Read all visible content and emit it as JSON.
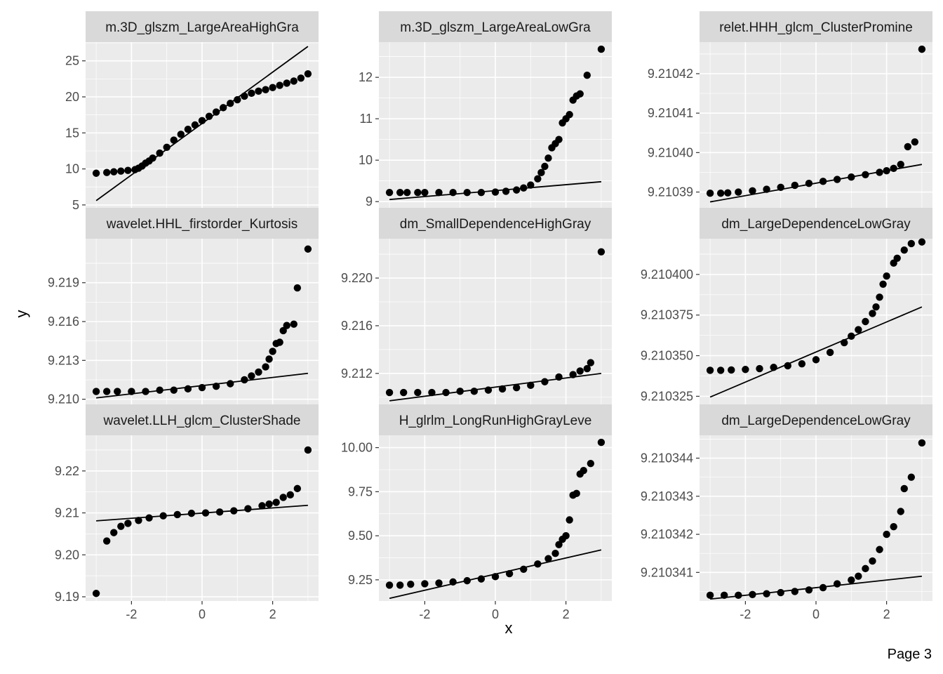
{
  "page_label": "Page 3",
  "colors": {
    "panel_bg": "#ebebeb",
    "grid_major": "#ffffff",
    "strip_bg": "#d9d9d9",
    "point": "#000000",
    "line": "#000000"
  },
  "chart_data": {
    "type": "scatter",
    "subtype": "qq-plot facets (3x3)",
    "xlabel": "x",
    "ylabel": "y",
    "grid": true,
    "legend": "none",
    "facets": [
      {
        "strip": "m.3D_glszm_LargeAreaHighGra",
        "yticks": [
          5,
          10,
          15,
          20,
          25
        ],
        "ylim": [
          4.6,
          27.6
        ],
        "ref_line": {
          "x0": -3,
          "y0": 5.6,
          "x1": 3,
          "y1": 27.0
        },
        "q": [
          [
            -3,
            9.4
          ],
          [
            -2.7,
            9.5
          ],
          [
            -2.5,
            9.6
          ],
          [
            -2.3,
            9.7
          ],
          [
            -2.1,
            9.8
          ],
          [
            -1.9,
            9.9
          ],
          [
            -1.8,
            10.1
          ],
          [
            -1.7,
            10.4
          ],
          [
            -1.6,
            10.8
          ],
          [
            -1.5,
            11.1
          ],
          [
            -1.4,
            11.5
          ],
          [
            -1.2,
            12.2
          ],
          [
            -1.0,
            13.0
          ],
          [
            -0.8,
            14.0
          ],
          [
            -0.6,
            14.8
          ],
          [
            -0.4,
            15.5
          ],
          [
            -0.2,
            16.1
          ],
          [
            0,
            16.7
          ],
          [
            0.2,
            17.3
          ],
          [
            0.4,
            17.9
          ],
          [
            0.6,
            18.5
          ],
          [
            0.8,
            19.1
          ],
          [
            1.0,
            19.6
          ],
          [
            1.2,
            20.1
          ],
          [
            1.4,
            20.5
          ],
          [
            1.6,
            20.8
          ],
          [
            1.8,
            21.0
          ],
          [
            2.0,
            21.3
          ],
          [
            2.2,
            21.6
          ],
          [
            2.4,
            21.9
          ],
          [
            2.6,
            22.2
          ],
          [
            2.8,
            22.6
          ],
          [
            3.0,
            23.2
          ]
        ]
      },
      {
        "strip": "m.3D_glszm_LargeAreaLowGra",
        "yticks": [
          9,
          10,
          11,
          12
        ],
        "ylim": [
          8.85,
          12.85
        ],
        "ref_line": {
          "x0": -3,
          "y0": 9.05,
          "x1": 3,
          "y1": 9.48
        },
        "q": [
          [
            -3,
            9.22
          ],
          [
            -2.7,
            9.22
          ],
          [
            -2.5,
            9.22
          ],
          [
            -2.2,
            9.22
          ],
          [
            -2,
            9.22
          ],
          [
            -1.6,
            9.22
          ],
          [
            -1.2,
            9.22
          ],
          [
            -0.8,
            9.22
          ],
          [
            -0.4,
            9.22
          ],
          [
            0,
            9.23
          ],
          [
            0.3,
            9.25
          ],
          [
            0.6,
            9.28
          ],
          [
            0.8,
            9.33
          ],
          [
            1.0,
            9.4
          ],
          [
            1.2,
            9.55
          ],
          [
            1.3,
            9.7
          ],
          [
            1.4,
            9.85
          ],
          [
            1.5,
            10.05
          ],
          [
            1.6,
            10.3
          ],
          [
            1.7,
            10.4
          ],
          [
            1.8,
            10.5
          ],
          [
            1.9,
            10.9
          ],
          [
            2.0,
            11.0
          ],
          [
            2.1,
            11.1
          ],
          [
            2.2,
            11.45
          ],
          [
            2.3,
            11.55
          ],
          [
            2.4,
            11.6
          ],
          [
            2.6,
            12.05
          ],
          [
            3.0,
            12.68
          ]
        ]
      },
      {
        "strip": "relet.HHH_glcm_ClusterPromine",
        "yticks": [
          9.21039,
          9.2104,
          9.21041,
          9.21042
        ],
        "ylim": [
          9.210386,
          9.210428
        ],
        "ref_line": {
          "x0": -3,
          "y0": 9.2103875,
          "x1": 3,
          "y1": 9.210397
        },
        "q": [
          [
            -3,
            9.2103897
          ],
          [
            -2.7,
            9.2103897
          ],
          [
            -2.5,
            9.2103898
          ],
          [
            -2.2,
            9.21039
          ],
          [
            -1.8,
            9.2103903
          ],
          [
            -1.4,
            9.2103907
          ],
          [
            -1.0,
            9.2103912
          ],
          [
            -0.6,
            9.2103917
          ],
          [
            -0.2,
            9.2103922
          ],
          [
            0.2,
            9.2103927
          ],
          [
            0.6,
            9.2103932
          ],
          [
            1.0,
            9.2103938
          ],
          [
            1.4,
            9.2103944
          ],
          [
            1.8,
            9.210395
          ],
          [
            2.0,
            9.2103954
          ],
          [
            2.2,
            9.210396
          ],
          [
            2.4,
            9.210397
          ],
          [
            2.6,
            9.2104015
          ],
          [
            2.8,
            9.2104027
          ],
          [
            3.0,
            9.2104262
          ]
        ]
      },
      {
        "strip": "wavelet.HHL_firstorder_Kurtosis",
        "yticks": [
          9.21,
          9.213,
          9.216,
          9.219
        ],
        "ylim": [
          9.2096,
          9.2224
        ],
        "ref_line": {
          "x0": -3,
          "y0": 9.2101,
          "x1": 3,
          "y1": 9.212
        },
        "q": [
          [
            -3,
            9.2106
          ],
          [
            -2.7,
            9.2106
          ],
          [
            -2.4,
            9.2106
          ],
          [
            -2.0,
            9.2106
          ],
          [
            -1.6,
            9.2106
          ],
          [
            -1.2,
            9.2107
          ],
          [
            -0.8,
            9.2107
          ],
          [
            -0.4,
            9.2108
          ],
          [
            0,
            9.2109
          ],
          [
            0.4,
            9.211
          ],
          [
            0.8,
            9.2112
          ],
          [
            1.2,
            9.2115
          ],
          [
            1.4,
            9.2118
          ],
          [
            1.6,
            9.2121
          ],
          [
            1.8,
            9.2125
          ],
          [
            1.9,
            9.2131
          ],
          [
            2.0,
            9.2137
          ],
          [
            2.1,
            9.2143
          ],
          [
            2.2,
            9.2144
          ],
          [
            2.3,
            9.2153
          ],
          [
            2.4,
            9.2157
          ],
          [
            2.6,
            9.2158
          ],
          [
            2.7,
            9.2186
          ],
          [
            3.0,
            9.2216
          ]
        ]
      },
      {
        "strip": "dm_SmallDependenceHighGray",
        "yticks": [
          9.212,
          9.216,
          9.22
        ],
        "ylim": [
          9.2094,
          9.2233
        ],
        "ref_line": {
          "x0": -3,
          "y0": 9.2097,
          "x1": 3,
          "y1": 9.212
        },
        "q": [
          [
            -3,
            9.2104
          ],
          [
            -2.6,
            9.2104
          ],
          [
            -2.2,
            9.2104
          ],
          [
            -1.8,
            9.2104
          ],
          [
            -1.4,
            9.2104
          ],
          [
            -1.0,
            9.2105
          ],
          [
            -0.6,
            9.2105
          ],
          [
            -0.2,
            9.2106
          ],
          [
            0.2,
            9.2107
          ],
          [
            0.6,
            9.2108
          ],
          [
            1.0,
            9.211
          ],
          [
            1.4,
            9.2113
          ],
          [
            1.8,
            9.2117
          ],
          [
            2.2,
            9.2119
          ],
          [
            2.4,
            9.2122
          ],
          [
            2.6,
            9.2124
          ],
          [
            2.7,
            9.2129
          ],
          [
            3.0,
            9.2222
          ]
        ]
      },
      {
        "strip": "dm_LargeDependenceLowGray",
        "yticks": [
          9.210325,
          9.21035,
          9.210375,
          9.2104
        ],
        "ylim": [
          9.21032,
          9.210422
        ],
        "ref_line": {
          "x0": -3,
          "y0": 9.2103245,
          "x1": 3,
          "y1": 9.21038
        },
        "q": [
          [
            -3,
            9.210341
          ],
          [
            -2.7,
            9.210341
          ],
          [
            -2.4,
            9.2103412
          ],
          [
            -2.0,
            9.2103415
          ],
          [
            -1.6,
            9.210342
          ],
          [
            -1.2,
            9.2103428
          ],
          [
            -0.8,
            9.2103438
          ],
          [
            -0.4,
            9.210345
          ],
          [
            0,
            9.2103475
          ],
          [
            0.4,
            9.210352
          ],
          [
            0.8,
            9.210358
          ],
          [
            1.0,
            9.210362
          ],
          [
            1.2,
            9.210366
          ],
          [
            1.4,
            9.210371
          ],
          [
            1.6,
            9.210376
          ],
          [
            1.7,
            9.21038
          ],
          [
            1.8,
            9.210386
          ],
          [
            1.9,
            9.210394
          ],
          [
            2.0,
            9.210399
          ],
          [
            2.2,
            9.210407
          ],
          [
            2.3,
            9.21041
          ],
          [
            2.5,
            9.210415
          ],
          [
            2.7,
            9.210419
          ],
          [
            3.0,
            9.21042
          ]
        ]
      },
      {
        "strip": "wavelet.LLH_glcm_ClusterShade",
        "yticks": [
          9.19,
          9.2,
          9.21,
          9.22
        ],
        "ylim": [
          9.189,
          9.2285
        ],
        "ref_line": {
          "x0": -3,
          "y0": 9.2081,
          "x1": 3,
          "y1": 9.2118
        },
        "q": [
          [
            -3,
            9.1908
          ],
          [
            -2.7,
            9.2033
          ],
          [
            -2.5,
            9.2053
          ],
          [
            -2.3,
            9.2068
          ],
          [
            -2.1,
            9.2075
          ],
          [
            -1.8,
            9.2082
          ],
          [
            -1.5,
            9.2088
          ],
          [
            -1.1,
            9.2093
          ],
          [
            -0.7,
            9.2096
          ],
          [
            -0.3,
            9.2099
          ],
          [
            0.1,
            9.21
          ],
          [
            0.5,
            9.2102
          ],
          [
            0.9,
            9.2105
          ],
          [
            1.3,
            9.211
          ],
          [
            1.7,
            9.2117
          ],
          [
            1.9,
            9.2121
          ],
          [
            2.1,
            9.2125
          ],
          [
            2.3,
            9.2137
          ],
          [
            2.5,
            9.2143
          ],
          [
            2.7,
            9.2158
          ],
          [
            3.0,
            9.225
          ]
        ]
      },
      {
        "strip": "H_glrlm_LongRunHighGrayLeve",
        "yticks": [
          9.25,
          9.5,
          9.75,
          10.0
        ],
        "ylim": [
          9.13,
          10.07
        ],
        "ref_line": {
          "x0": -3,
          "y0": 9.145,
          "x1": 3,
          "y1": 9.42
        },
        "q": [
          [
            -3,
            9.22
          ],
          [
            -2.7,
            9.22
          ],
          [
            -2.4,
            9.225
          ],
          [
            -2.0,
            9.228
          ],
          [
            -1.6,
            9.232
          ],
          [
            -1.2,
            9.238
          ],
          [
            -0.8,
            9.245
          ],
          [
            -0.4,
            9.255
          ],
          [
            0,
            9.268
          ],
          [
            0.4,
            9.285
          ],
          [
            0.8,
            9.31
          ],
          [
            1.2,
            9.34
          ],
          [
            1.5,
            9.37
          ],
          [
            1.7,
            9.4
          ],
          [
            1.8,
            9.45
          ],
          [
            1.9,
            9.48
          ],
          [
            2.0,
            9.5
          ],
          [
            2.1,
            9.59
          ],
          [
            2.2,
            9.73
          ],
          [
            2.3,
            9.74
          ],
          [
            2.4,
            9.85
          ],
          [
            2.5,
            9.87
          ],
          [
            2.7,
            9.91
          ],
          [
            3.0,
            10.03
          ]
        ]
      },
      {
        "strip": "dm_LargeDependenceLowGray",
        "yticks": [
          9.210341,
          9.210342,
          9.210343,
          9.210344
        ],
        "ylim": [
          9.21034025,
          9.2103446
        ],
        "ref_line": {
          "x0": -3,
          "y0": 9.2103403,
          "x1": 3,
          "y1": 9.2103409
        },
        "q": [
          [
            -3,
            9.2103404
          ],
          [
            -2.6,
            9.2103404
          ],
          [
            -2.2,
            9.2103404
          ],
          [
            -1.8,
            9.21034042
          ],
          [
            -1.4,
            9.21034044
          ],
          [
            -1.0,
            9.21034047
          ],
          [
            -0.6,
            9.2103405
          ],
          [
            -0.2,
            9.21034054
          ],
          [
            0.2,
            9.2103406
          ],
          [
            0.6,
            9.2103407
          ],
          [
            1.0,
            9.2103408
          ],
          [
            1.2,
            9.2103409
          ],
          [
            1.4,
            9.2103411
          ],
          [
            1.6,
            9.2103413
          ],
          [
            1.8,
            9.2103416
          ],
          [
            2.0,
            9.210342
          ],
          [
            2.2,
            9.2103422
          ],
          [
            2.4,
            9.2103426
          ],
          [
            2.5,
            9.2103432
          ],
          [
            2.7,
            9.2103435
          ],
          [
            3.0,
            9.2103444
          ]
        ]
      }
    ]
  }
}
